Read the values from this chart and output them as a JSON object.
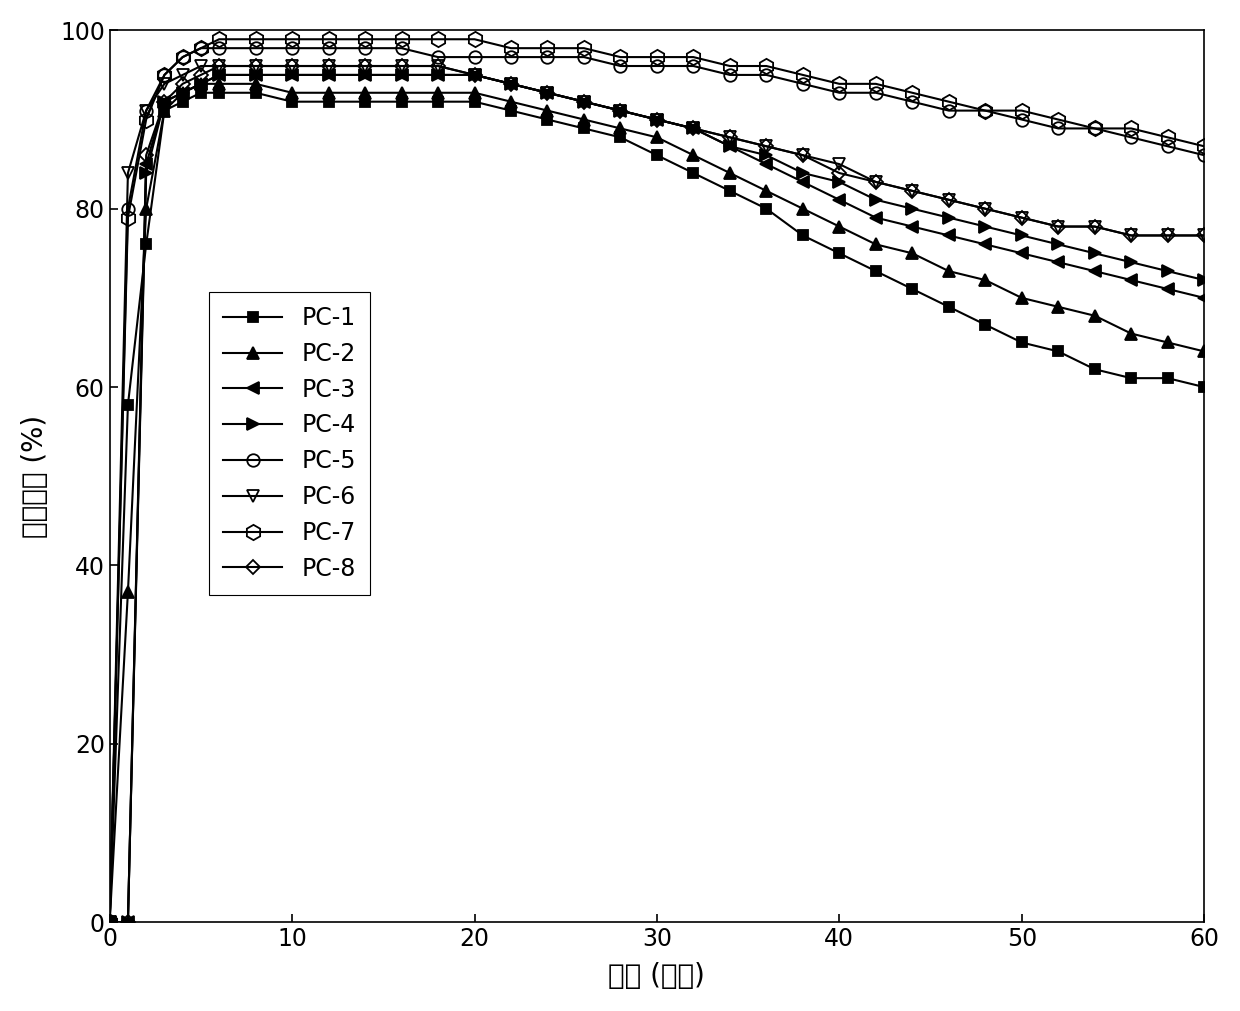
{
  "xlabel": "时间 (分钟)",
  "ylabel": "脱汞效率 (%)",
  "xlim": [
    0,
    60
  ],
  "ylim": [
    0,
    100
  ],
  "xticks": [
    0,
    10,
    20,
    30,
    40,
    50,
    60
  ],
  "yticks": [
    0,
    20,
    40,
    60,
    80,
    100
  ],
  "series": [
    {
      "label": "PC-1",
      "marker": "s",
      "fillstyle": "full",
      "markersize": 7,
      "x": [
        0,
        1,
        2,
        3,
        4,
        5,
        6,
        8,
        10,
        12,
        14,
        16,
        18,
        20,
        22,
        24,
        26,
        28,
        30,
        32,
        34,
        36,
        38,
        40,
        42,
        44,
        46,
        48,
        50,
        52,
        54,
        56,
        58,
        60
      ],
      "y": [
        0,
        58,
        76,
        91,
        92,
        93,
        93,
        93,
        92,
        92,
        92,
        92,
        92,
        92,
        91,
        90,
        89,
        88,
        86,
        84,
        82,
        80,
        77,
        75,
        73,
        71,
        69,
        67,
        65,
        64,
        62,
        61,
        61,
        60
      ]
    },
    {
      "label": "PC-2",
      "marker": "^",
      "fillstyle": "full",
      "markersize": 8,
      "x": [
        0,
        1,
        2,
        3,
        4,
        5,
        6,
        8,
        10,
        12,
        14,
        16,
        18,
        20,
        22,
        24,
        26,
        28,
        30,
        32,
        34,
        36,
        38,
        40,
        42,
        44,
        46,
        48,
        50,
        52,
        54,
        56,
        58,
        60
      ],
      "y": [
        0,
        37,
        80,
        91,
        93,
        94,
        94,
        94,
        93,
        93,
        93,
        93,
        93,
        93,
        92,
        91,
        90,
        89,
        88,
        86,
        84,
        82,
        80,
        78,
        76,
        75,
        73,
        72,
        70,
        69,
        68,
        66,
        65,
        64
      ]
    },
    {
      "label": "PC-3",
      "marker": "<",
      "fillstyle": "full",
      "markersize": 8,
      "x": [
        0,
        1,
        2,
        3,
        4,
        5,
        6,
        8,
        10,
        12,
        14,
        16,
        18,
        20,
        22,
        24,
        26,
        28,
        30,
        32,
        34,
        36,
        38,
        40,
        42,
        44,
        46,
        48,
        50,
        52,
        54,
        56,
        58,
        60
      ],
      "y": [
        0,
        0,
        85,
        92,
        93,
        94,
        95,
        95,
        95,
        95,
        95,
        95,
        95,
        95,
        94,
        93,
        92,
        91,
        90,
        89,
        87,
        85,
        83,
        81,
        79,
        78,
        77,
        76,
        75,
        74,
        73,
        72,
        71,
        70
      ]
    },
    {
      "label": "PC-4",
      "marker": ">",
      "fillstyle": "full",
      "markersize": 8,
      "x": [
        0,
        1,
        2,
        3,
        4,
        5,
        6,
        8,
        10,
        12,
        14,
        16,
        18,
        20,
        22,
        24,
        26,
        28,
        30,
        32,
        34,
        36,
        38,
        40,
        42,
        44,
        46,
        48,
        50,
        52,
        54,
        56,
        58,
        60
      ],
      "y": [
        0,
        0,
        84,
        92,
        93,
        94,
        95,
        95,
        95,
        95,
        95,
        95,
        95,
        95,
        94,
        93,
        92,
        91,
        90,
        89,
        87,
        86,
        84,
        83,
        81,
        80,
        79,
        78,
        77,
        76,
        75,
        74,
        73,
        72
      ]
    },
    {
      "label": "PC-5",
      "marker": "o",
      "fillstyle": "none",
      "markersize": 9,
      "x": [
        0,
        1,
        2,
        3,
        4,
        5,
        6,
        8,
        10,
        12,
        14,
        16,
        18,
        20,
        22,
        24,
        26,
        28,
        30,
        32,
        34,
        36,
        38,
        40,
        42,
        44,
        46,
        48,
        50,
        52,
        54,
        56,
        58,
        60
      ],
      "y": [
        0,
        80,
        91,
        95,
        97,
        98,
        98,
        98,
        98,
        98,
        98,
        98,
        97,
        97,
        97,
        97,
        97,
        96,
        96,
        96,
        95,
        95,
        94,
        93,
        93,
        92,
        91,
        91,
        90,
        89,
        89,
        88,
        87,
        86
      ]
    },
    {
      "label": "PC-6",
      "marker": "v",
      "fillstyle": "none",
      "markersize": 8,
      "x": [
        0,
        1,
        2,
        3,
        4,
        5,
        6,
        8,
        10,
        12,
        14,
        16,
        18,
        20,
        22,
        24,
        26,
        28,
        30,
        32,
        34,
        36,
        38,
        40,
        42,
        44,
        46,
        48,
        50,
        52,
        54,
        56,
        58,
        60
      ],
      "y": [
        0,
        84,
        91,
        94,
        95,
        96,
        96,
        96,
        96,
        96,
        96,
        96,
        96,
        95,
        94,
        93,
        92,
        91,
        90,
        89,
        88,
        87,
        86,
        85,
        83,
        82,
        81,
        80,
        79,
        78,
        78,
        77,
        77,
        77
      ]
    },
    {
      "label": "PC-7",
      "marker": "h",
      "fillstyle": "none",
      "markersize": 11,
      "x": [
        0,
        1,
        2,
        3,
        4,
        5,
        6,
        8,
        10,
        12,
        14,
        16,
        18,
        20,
        22,
        24,
        26,
        28,
        30,
        32,
        34,
        36,
        38,
        40,
        42,
        44,
        46,
        48,
        50,
        52,
        54,
        56,
        58,
        60
      ],
      "y": [
        0,
        79,
        90,
        95,
        97,
        98,
        99,
        99,
        99,
        99,
        99,
        99,
        99,
        99,
        98,
        98,
        98,
        97,
        97,
        97,
        96,
        96,
        95,
        94,
        94,
        93,
        92,
        91,
        91,
        90,
        89,
        89,
        88,
        87
      ]
    },
    {
      "label": "PC-8",
      "marker": "D",
      "fillstyle": "none",
      "markersize": 7,
      "x": [
        0,
        1,
        2,
        3,
        4,
        5,
        6,
        8,
        10,
        12,
        14,
        16,
        18,
        20,
        22,
        24,
        26,
        28,
        30,
        32,
        34,
        36,
        38,
        40,
        42,
        44,
        46,
        48,
        50,
        52,
        54,
        56,
        58,
        60
      ],
      "y": [
        0,
        0,
        86,
        92,
        94,
        95,
        96,
        96,
        96,
        96,
        96,
        96,
        96,
        95,
        94,
        93,
        92,
        91,
        90,
        89,
        88,
        87,
        86,
        84,
        83,
        82,
        81,
        80,
        79,
        78,
        78,
        77,
        77,
        77
      ]
    }
  ],
  "linewidth": 1.5,
  "background_color": "#ffffff",
  "label_fontsize": 20,
  "tick_fontsize": 17,
  "legend_fontsize": 17
}
